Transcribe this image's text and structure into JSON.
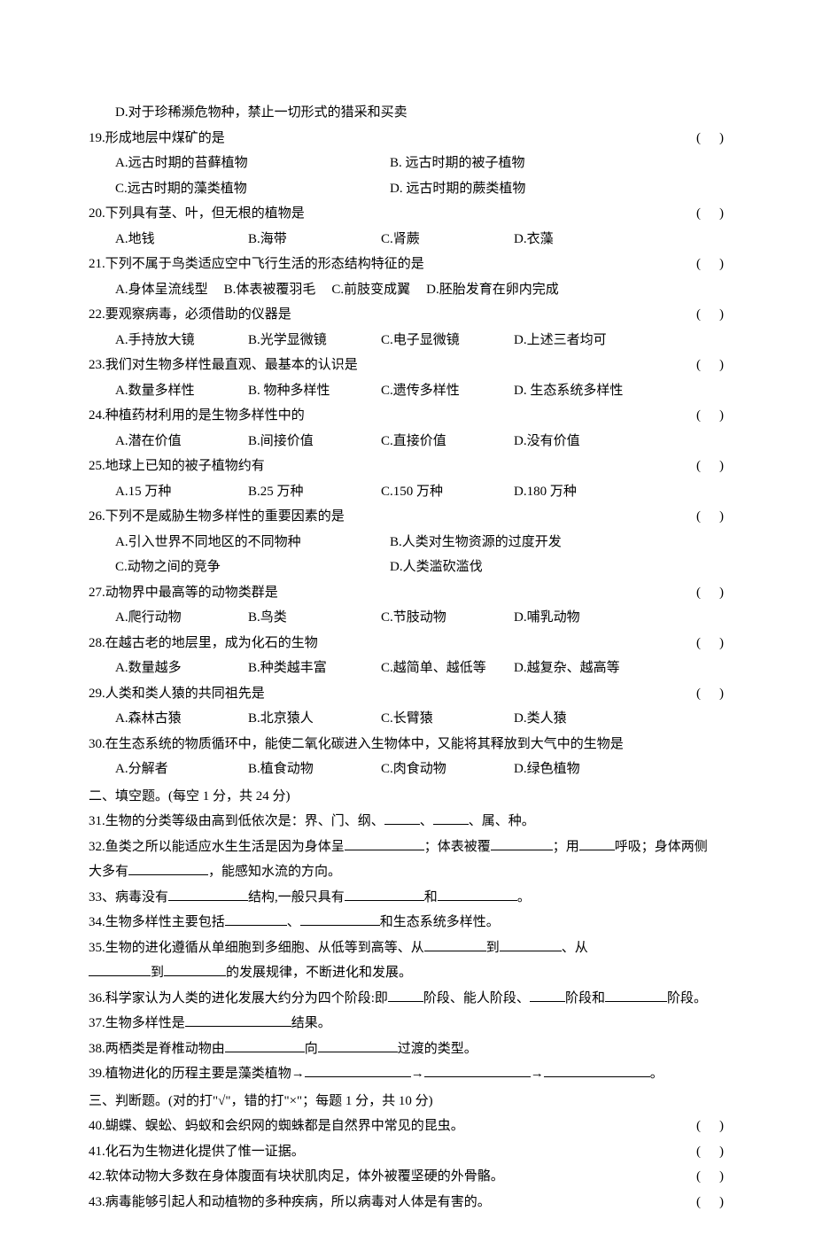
{
  "items": [
    {
      "type": "option_line",
      "text": "D.对于珍稀濒危物种，禁止一切形式的猎采和买卖"
    },
    {
      "type": "question",
      "num": "19",
      "text": "形成地层中煤矿的是",
      "paren": true
    },
    {
      "type": "options2",
      "opts": [
        "A.远古时期的苔藓植物",
        "B. 远古时期的被子植物"
      ]
    },
    {
      "type": "options2",
      "opts": [
        "C.远古时期的藻类植物",
        "D. 远古时期的蕨类植物"
      ]
    },
    {
      "type": "question",
      "num": "20",
      "text": "下列具有茎、叶，但无根的植物是",
      "paren": true
    },
    {
      "type": "options4",
      "opts": [
        "A.地钱",
        "B.海带",
        "C.肾蕨",
        "D.衣藻"
      ]
    },
    {
      "type": "question",
      "num": "21",
      "text": "下列不属于鸟类适应空中飞行生活的形态结构特征的是",
      "paren": true
    },
    {
      "type": "options4_tight",
      "opts": [
        "A.身体呈流线型",
        "B.体表被覆羽毛",
        "C.前肢变成翼",
        "D.胚胎发育在卵内完成"
      ]
    },
    {
      "type": "question",
      "num": "22",
      "text": "要观察病毒，必须借助的仪器是",
      "paren": true
    },
    {
      "type": "options4",
      "opts": [
        "A.手持放大镜",
        "B.光学显微镜",
        "C.电子显微镜",
        "D.上述三者均可"
      ]
    },
    {
      "type": "question",
      "num": "23",
      "text": "我们对生物多样性最直观、最基本的认识是",
      "paren": true
    },
    {
      "type": "options4",
      "opts": [
        "A.数量多样性",
        "B. 物种多样性",
        "C.遗传多样性",
        "D. 生态系统多样性"
      ]
    },
    {
      "type": "question",
      "num": "24",
      "text": "种植药材利用的是生物多样性中的",
      "paren": true
    },
    {
      "type": "options4",
      "opts": [
        "A.潜在价值",
        "B.间接价值",
        "C.直接价值",
        "D.没有价值"
      ]
    },
    {
      "type": "question",
      "num": "25",
      "text": "地球上已知的被子植物约有",
      "paren": true
    },
    {
      "type": "options4",
      "opts": [
        "A.15 万种",
        "B.25 万种",
        "C.150 万种",
        "D.180 万种"
      ]
    },
    {
      "type": "question",
      "num": "26",
      "text": "下列不是威胁生物多样性的重要因素的是",
      "paren": true
    },
    {
      "type": "options2",
      "opts": [
        "A.引入世界不同地区的不同物种",
        "B.人类对生物资源的过度开发"
      ]
    },
    {
      "type": "options2",
      "opts": [
        "C.动物之间的竞争",
        "D.人类滥砍滥伐"
      ]
    },
    {
      "type": "question",
      "num": "27",
      "text": "动物界中最高等的动物类群是",
      "paren": true
    },
    {
      "type": "options4",
      "opts": [
        "A.爬行动物",
        "B.鸟类",
        "C.节肢动物",
        "D.哺乳动物"
      ]
    },
    {
      "type": "question",
      "num": "28",
      "text": "在越古老的地层里，成为化石的生物",
      "paren": true
    },
    {
      "type": "options4",
      "opts": [
        "A.数量越多",
        "B.种类越丰富",
        "C.越简单、越低等",
        "D.越复杂、越高等"
      ]
    },
    {
      "type": "question",
      "num": "29",
      "text": "人类和类人猿的共同祖先是",
      "paren": true
    },
    {
      "type": "options4",
      "opts": [
        "A.森林古猿",
        "B.北京猿人",
        "C.长臂猿",
        "D.类人猿"
      ]
    },
    {
      "type": "question_noparen",
      "num": "30",
      "text": "在生态系统的物质循环中，能使二氧化碳进入生物体中，又能将其释放到大气中的生物是"
    },
    {
      "type": "options4",
      "opts": [
        "A.分解者",
        "B.植食动物",
        "C.肉食动物",
        "D.绿色植物"
      ]
    }
  ],
  "section2_title": "二、填空题。(每空 1 分，共 24 分)",
  "fills": [
    {
      "num": "31",
      "parts": [
        "生物的分类等级由高到低依次是：界、门、纲、",
        {
          "blank": "sm"
        },
        "、",
        {
          "blank": "sm"
        },
        "、属、种。"
      ]
    },
    {
      "num": "32",
      "parts": [
        "鱼类之所以能适应水生生活是因为身体呈",
        {
          "blank": "lg"
        },
        "；体表被覆",
        {
          "blank": "md"
        },
        "；用",
        {
          "blank": "sm"
        },
        "呼吸；身体两侧"
      ]
    },
    {
      "cont": true,
      "parts": [
        "大多有",
        {
          "blank": "lg"
        },
        "，能感知水流的方向。"
      ]
    },
    {
      "num": "33",
      "sep": "、",
      "parts": [
        "病毒没有",
        {
          "blank": "lg"
        },
        "结构,一般只具有",
        {
          "blank": "lg"
        },
        "和",
        {
          "blank": "lg"
        },
        "。"
      ]
    },
    {
      "num": "34",
      "parts": [
        "生物多样性主要包括",
        {
          "blank": "md"
        },
        "、",
        {
          "blank": "lg"
        },
        "和生态系统多样性。"
      ]
    },
    {
      "num": "35",
      "parts": [
        "生物的进化遵循从单细胞到多细胞、从低等到高等、从",
        {
          "blank": "md"
        },
        "到",
        {
          "blank": "md"
        },
        "、从"
      ]
    },
    {
      "cont": true,
      "parts": [
        {
          "blank": "md"
        },
        "到",
        {
          "blank": "md"
        },
        "的发展规律，不断进化和发展。"
      ]
    },
    {
      "num": "36",
      "parts": [
        "科学家认为人类的进化发展大约分为四个阶段:即",
        {
          "blank": "sm"
        },
        "阶段、能人阶段、",
        {
          "blank": "sm"
        },
        "阶段和",
        {
          "blank": "md"
        },
        "阶段。"
      ]
    },
    {
      "num": "37",
      "parts": [
        "生物多样性是",
        {
          "blank": "xl"
        },
        "结果。"
      ]
    },
    {
      "num": "38",
      "parts": [
        "两栖类是脊椎动物由",
        {
          "blank": "lg"
        },
        "向",
        {
          "blank": "lg"
        },
        "过渡的类型。"
      ]
    },
    {
      "num": "39",
      "parts": [
        "植物进化的历程主要是藻类植物→",
        {
          "blank": "xl"
        },
        "→",
        {
          "blank": "xl"
        },
        "→",
        {
          "blank": "xl"
        },
        "。"
      ]
    }
  ],
  "section3_title": "三、判断题。(对的打\"√\"，错的打\"×\"；每题 1 分，共 10 分)",
  "judgments": [
    {
      "num": "40",
      "text": "蝴蝶、蜈蚣、蚂蚁和会织网的蜘蛛都是自然界中常见的昆虫。"
    },
    {
      "num": "41",
      "text": "化石为生物进化提供了惟一证据。"
    },
    {
      "num": "42",
      "text": "软体动物大多数在身体腹面有块状肌肉足，体外被覆坚硬的外骨骼。"
    },
    {
      "num": "43",
      "text": "病毒能够引起人和动植物的多种疾病，所以病毒对人体是有害的。"
    }
  ],
  "paren_symbol": "(　)"
}
